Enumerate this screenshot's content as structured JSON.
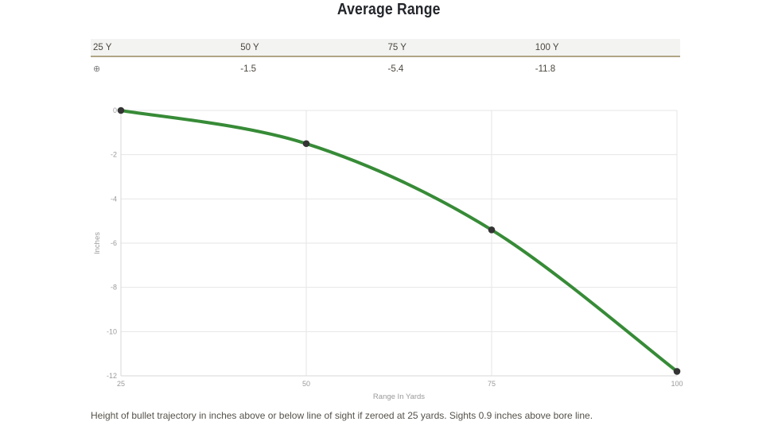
{
  "title": "Average Range",
  "table": {
    "headers": [
      "25 Y",
      "50 Y",
      "75 Y",
      "100 Y"
    ],
    "zero_icon_glyph": "⊕",
    "values": [
      "",
      "-1.5",
      "-5.4",
      "-11.8"
    ]
  },
  "chart_data": {
    "type": "line",
    "x": [
      25,
      50,
      75,
      100
    ],
    "y": [
      0,
      -1.5,
      -5.4,
      -11.8
    ],
    "xlabel": "Range In Yards",
    "ylabel": "Inches",
    "xticks": [
      25,
      50,
      75,
      100
    ],
    "yticks": [
      0,
      -2,
      -4,
      -6,
      -8,
      -10,
      -12
    ],
    "xlim": [
      25,
      100
    ],
    "ylim": [
      -12,
      0
    ],
    "grid": true,
    "line_color": "#378b37",
    "point_color": "#343434",
    "grid_color": "#e6e6e6",
    "axis_color": "#d7d7d7",
    "tick_label_color": "#9a9a9a"
  },
  "caption": "Height of bullet trajectory in inches above or below line of sight if zeroed at 25 yards. Sights 0.9 inches above bore line."
}
